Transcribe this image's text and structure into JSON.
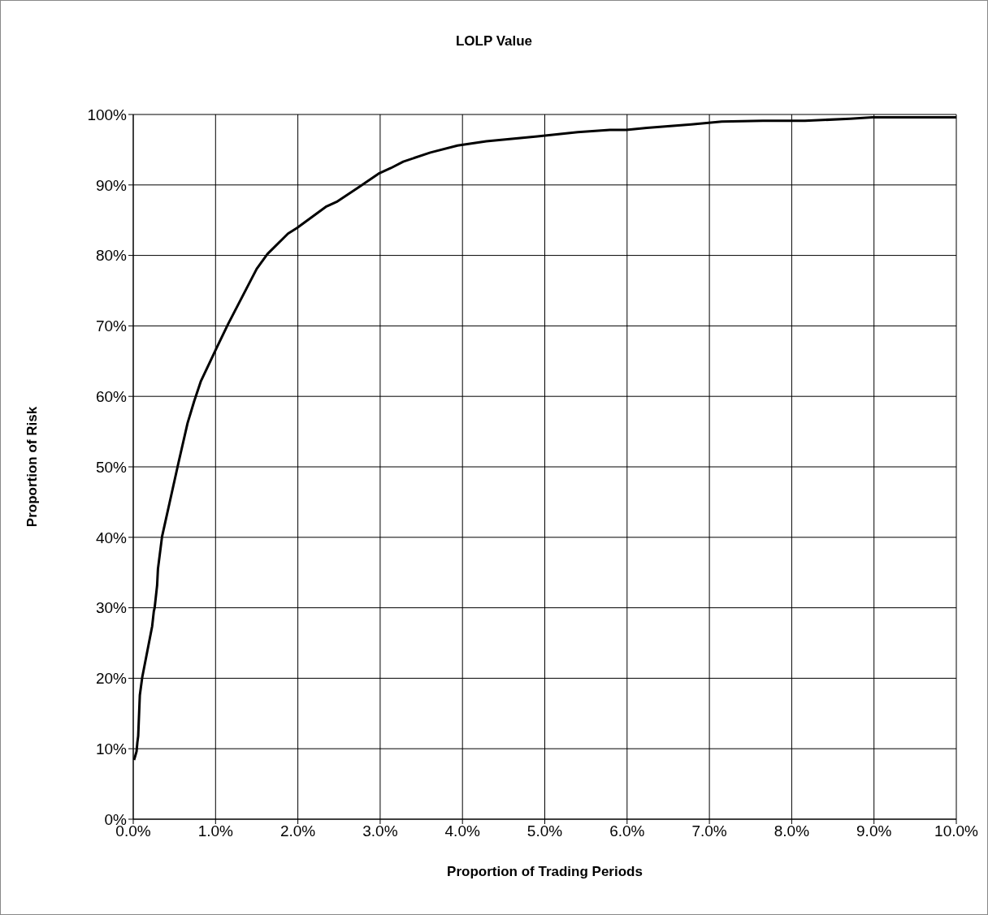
{
  "chart_data": {
    "type": "line",
    "title": "LOLP Value",
    "xlabel": "Proportion of Trading Periods",
    "ylabel": "Proportion of Risk",
    "x": [
      0.01,
      0.04,
      0.05,
      0.06,
      0.08,
      0.11,
      0.23,
      0.25,
      0.26,
      0.29,
      0.3,
      0.35,
      0.55,
      0.66,
      0.74,
      0.82,
      1.01,
      1.15,
      1.5,
      1.63,
      1.88,
      1.99,
      2.34,
      2.47,
      2.73,
      2.98,
      3.13,
      3.28,
      3.61,
      3.94,
      4.29,
      4.91,
      5.4,
      5.79,
      5.99,
      6.24,
      6.78,
      7.15,
      7.65,
      8.16,
      8.71,
      8.98,
      9.84,
      10.0
    ],
    "series": [
      {
        "color": "#000000",
        "values": [
          8.4,
          9.6,
          10.9,
          11.8,
          17.6,
          20.2,
          27.4,
          29.5,
          30,
          33.2,
          35.5,
          40.1,
          50.6,
          56.2,
          59.3,
          62.1,
          66.8,
          70.2,
          78.1,
          80.2,
          83.1,
          83.9,
          86.9,
          87.6,
          89.6,
          91.6,
          92.4,
          93.3,
          94.6,
          95.6,
          96.2,
          96.9,
          97.5,
          97.8,
          97.8,
          98.1,
          98.6,
          99.0,
          99.1,
          99.1,
          99.4,
          99.6,
          99.6,
          99.6
        ]
      }
    ],
    "xlim": [
      0,
      10
    ],
    "xticks": [
      {
        "value": 0,
        "label": "0.0%"
      },
      {
        "value": 1,
        "label": "1.0%"
      },
      {
        "value": 2,
        "label": "2.0%"
      },
      {
        "value": 3,
        "label": "3.0%"
      },
      {
        "value": 4,
        "label": "4.0%"
      },
      {
        "value": 5,
        "label": "5.0%"
      },
      {
        "value": 6,
        "label": "6.0%"
      },
      {
        "value": 7,
        "label": "7.0%"
      },
      {
        "value": 8,
        "label": "8.0%"
      },
      {
        "value": 9,
        "label": "9.0%"
      },
      {
        "value": 10,
        "label": "10.0%"
      }
    ],
    "ylim": [
      0,
      100
    ],
    "yticks": [
      {
        "value": 0,
        "label": "0%"
      },
      {
        "value": 10,
        "label": "10%"
      },
      {
        "value": 20,
        "label": "20%"
      },
      {
        "value": 30,
        "label": "30%"
      },
      {
        "value": 40,
        "label": "40%"
      },
      {
        "value": 50,
        "label": "50%"
      },
      {
        "value": 60,
        "label": "60%"
      },
      {
        "value": 70,
        "label": "70%"
      },
      {
        "value": 80,
        "label": "80%"
      },
      {
        "value": 90,
        "label": "90%"
      },
      {
        "value": 100,
        "label": "100%"
      }
    ],
    "grid": true,
    "legend": false,
    "marker": "none",
    "line_style": "solid"
  }
}
